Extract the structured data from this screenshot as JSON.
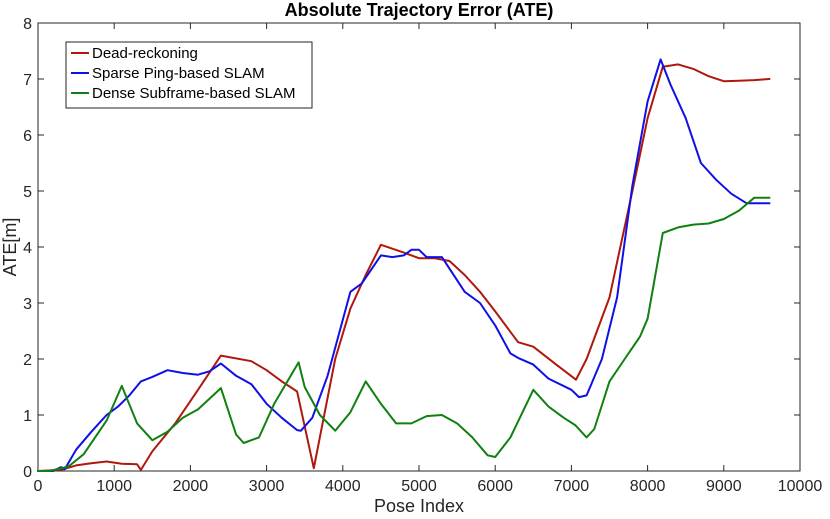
{
  "chart_data": {
    "type": "line",
    "title": "Absolute Trajectory Error (ATE)",
    "xlabel": "Pose Index",
    "ylabel": "ATE[m]",
    "xlim": [
      0,
      10000
    ],
    "ylim": [
      0,
      8
    ],
    "xticks": [
      0,
      1000,
      2000,
      3000,
      4000,
      5000,
      6000,
      7000,
      8000,
      9000,
      10000
    ],
    "yticks": [
      0,
      1,
      2,
      3,
      4,
      5,
      6,
      7,
      8
    ],
    "grid": false,
    "legend_position": "top-left",
    "series": [
      {
        "name": "Dead-reckoning",
        "color": "#b0180c",
        "x": [
          0,
          300,
          500,
          700,
          900,
          1100,
          1300,
          1350,
          1500,
          1800,
          2100,
          2400,
          2800,
          3000,
          3200,
          3400,
          3620,
          3900,
          4100,
          4300,
          4500,
          4800,
          5000,
          5200,
          5400,
          5600,
          5800,
          6000,
          6300,
          6500,
          6800,
          7060,
          7200,
          7500,
          7800,
          8000,
          8200,
          8400,
          8600,
          8800,
          9000,
          9200,
          9400,
          9600
        ],
        "y": [
          0.0,
          0.02,
          0.1,
          0.14,
          0.17,
          0.13,
          0.12,
          0.02,
          0.35,
          0.85,
          1.45,
          2.06,
          1.96,
          1.8,
          1.6,
          1.42,
          0.05,
          2.0,
          2.9,
          3.5,
          4.04,
          3.9,
          3.8,
          3.8,
          3.75,
          3.5,
          3.2,
          2.85,
          2.3,
          2.22,
          1.9,
          1.63,
          2.0,
          3.1,
          5.0,
          6.3,
          7.22,
          7.26,
          7.18,
          7.05,
          6.96,
          6.97,
          6.98,
          7.0
        ]
      },
      {
        "name": "Sparse Ping-based SLAM",
        "color": "#1010e6",
        "x": [
          0,
          200,
          300,
          350,
          500,
          700,
          900,
          1050,
          1200,
          1350,
          1500,
          1700,
          1900,
          2100,
          2250,
          2400,
          2600,
          2800,
          3000,
          3200,
          3400,
          3450,
          3600,
          3800,
          4000,
          4100,
          4250,
          4500,
          4650,
          4800,
          4900,
          5000,
          5100,
          5300,
          5600,
          5800,
          6000,
          6200,
          6300,
          6500,
          6700,
          7000,
          7100,
          7200,
          7400,
          7600,
          7800,
          8000,
          8170,
          8300,
          8500,
          8700,
          8900,
          9100,
          9300,
          9600
        ],
        "y": [
          0.0,
          0.0,
          0.07,
          0.03,
          0.38,
          0.7,
          1.0,
          1.15,
          1.35,
          1.6,
          1.68,
          1.8,
          1.75,
          1.72,
          1.78,
          1.92,
          1.7,
          1.55,
          1.2,
          0.95,
          0.73,
          0.72,
          0.95,
          1.7,
          2.7,
          3.2,
          3.35,
          3.85,
          3.82,
          3.85,
          3.95,
          3.95,
          3.82,
          3.82,
          3.2,
          3.0,
          2.6,
          2.1,
          2.02,
          1.9,
          1.65,
          1.45,
          1.32,
          1.35,
          2.0,
          3.1,
          5.1,
          6.6,
          7.35,
          6.9,
          6.3,
          5.5,
          5.2,
          4.95,
          4.78,
          4.78
        ]
      },
      {
        "name": "Dense Subframe-based SLAM",
        "color": "#108010",
        "x": [
          0,
          150,
          400,
          600,
          900,
          1100,
          1300,
          1500,
          1700,
          1900,
          2100,
          2400,
          2600,
          2700,
          2900,
          3100,
          3420,
          3500,
          3700,
          3900,
          4100,
          4300,
          4500,
          4700,
          4900,
          5100,
          5300,
          5500,
          5700,
          5900,
          6000,
          6200,
          6500,
          6700,
          6900,
          7050,
          7200,
          7300,
          7500,
          7700,
          7900,
          8000,
          8200,
          8400,
          8600,
          8800,
          9000,
          9200,
          9400,
          9600
        ],
        "y": [
          0.0,
          0.0,
          0.08,
          0.3,
          0.9,
          1.52,
          0.85,
          0.55,
          0.7,
          0.95,
          1.1,
          1.48,
          0.65,
          0.5,
          0.6,
          1.2,
          1.94,
          1.5,
          1.0,
          0.72,
          1.05,
          1.6,
          1.2,
          0.85,
          0.85,
          0.98,
          1.0,
          0.85,
          0.6,
          0.28,
          0.25,
          0.6,
          1.45,
          1.15,
          0.95,
          0.82,
          0.6,
          0.75,
          1.6,
          2.0,
          2.4,
          2.72,
          4.25,
          4.35,
          4.4,
          4.42,
          4.5,
          4.65,
          4.88,
          4.88
        ]
      }
    ]
  }
}
